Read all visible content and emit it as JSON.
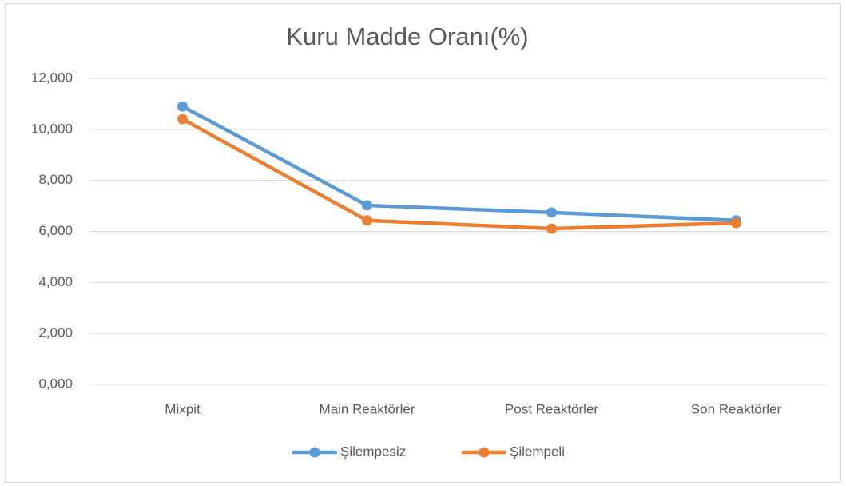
{
  "chart_data": {
    "type": "line",
    "title": "Kuru Madde Oranı(%)",
    "categories": [
      "Mixpit",
      "Main Reaktörler",
      "Post Reaktörler",
      "Son Reaktörler"
    ],
    "series": [
      {
        "name": "Şilempesiz",
        "color": "#5b9bd5",
        "values": [
          10.9,
          7.02,
          6.74,
          6.43
        ]
      },
      {
        "name": "Şilempeli",
        "color": "#ed7d31",
        "values": [
          10.4,
          6.43,
          6.11,
          6.33
        ]
      }
    ],
    "ylim": [
      0,
      12
    ],
    "yticks": [
      {
        "value": 0,
        "label": "0,000"
      },
      {
        "value": 2,
        "label": "2,000"
      },
      {
        "value": 4,
        "label": "4,000"
      },
      {
        "value": 6,
        "label": "6,000"
      },
      {
        "value": 8,
        "label": "8,000"
      },
      {
        "value": 10,
        "label": "10,000"
      },
      {
        "value": 12,
        "label": "12,000"
      }
    ],
    "grid": true,
    "legend": "bottom"
  }
}
